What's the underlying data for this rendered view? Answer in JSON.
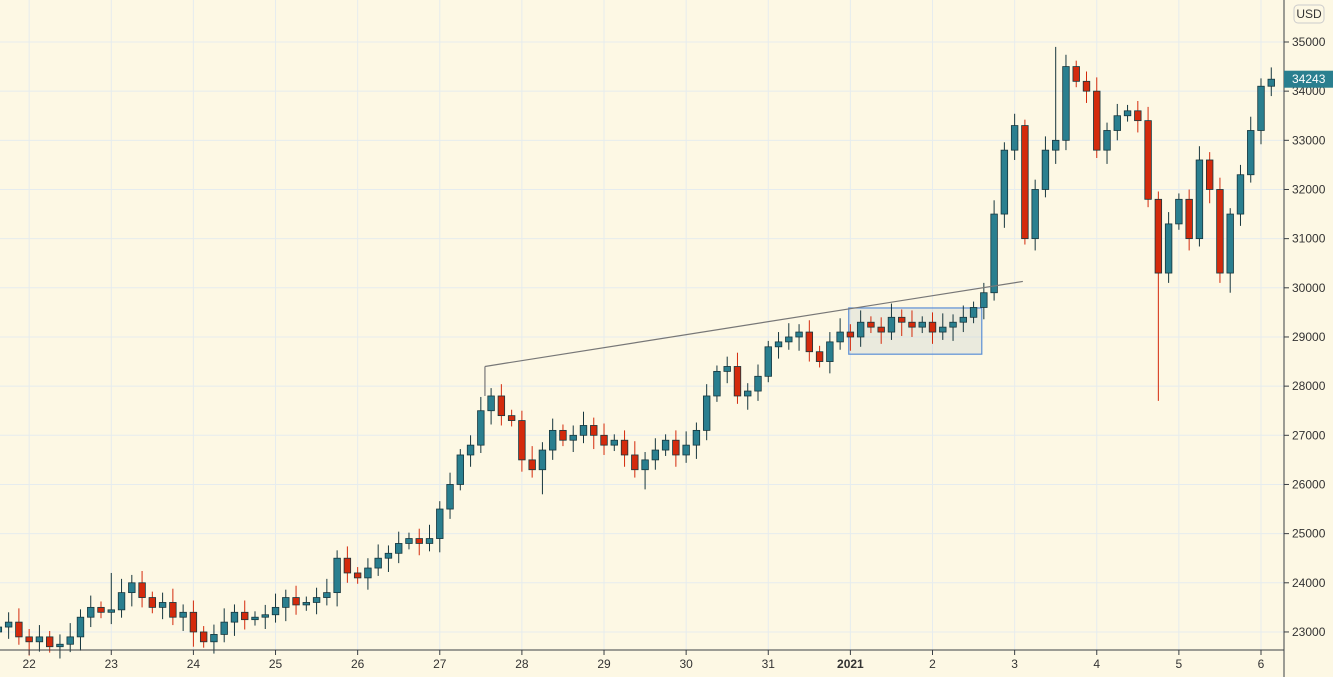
{
  "chart_data": {
    "type": "candlestick",
    "title": "",
    "currency_label": "USD",
    "last_price_label": "34243",
    "colors": {
      "up": "#2a7f8f",
      "down": "#d42a0c",
      "outline": "#16363d",
      "background": "#fdf8e4",
      "grid": "#e6ecee",
      "last_price": "#2a7f8f"
    },
    "ylim": [
      22633,
      35854
    ],
    "yticks": [
      23000,
      24000,
      25000,
      26000,
      27000,
      28000,
      29000,
      30000,
      31000,
      32000,
      33000,
      34000,
      35000
    ],
    "ytick_labels": [
      "23000",
      "24000",
      "25000",
      "26000",
      "27000",
      "28000",
      "29000",
      "30000",
      "31000",
      "32000",
      "33000",
      "34000",
      "35000"
    ],
    "x_unit": "days since Dec 22 (3h candles)",
    "xlim": [
      -0.355,
      15.28
    ],
    "xticks": [
      0,
      1,
      2,
      3,
      4,
      5,
      6,
      7,
      8,
      9,
      10,
      11,
      12,
      13,
      14,
      15
    ],
    "xtick_labels": [
      "22",
      "23",
      "24",
      "25",
      "26",
      "27",
      "28",
      "29",
      "30",
      "31",
      "2021",
      "2",
      "3",
      "4",
      "5",
      "6"
    ],
    "xtick_bold": [
      "2021"
    ],
    "candle_start": -0.375,
    "candle_step": 0.125,
    "first_open": 23000,
    "closes": [
      23100,
      23200,
      22900,
      22800,
      22900,
      22700,
      22750,
      22900,
      23300,
      23500,
      23400,
      23450,
      23800,
      24000,
      23700,
      23500,
      23600,
      23300,
      23400,
      23000,
      22800,
      22950,
      23200,
      23400,
      23250,
      23300,
      23350,
      23500,
      23700,
      23550,
      23600,
      23700,
      23800,
      24500,
      24200,
      24100,
      24300,
      24500,
      24600,
      24800,
      24900,
      24800,
      24900,
      25500,
      26000,
      26600,
      26800,
      27500,
      27800,
      27400,
      27300,
      26500,
      26300,
      26700,
      27100,
      26900,
      27000,
      27200,
      27000,
      26800,
      26900,
      26600,
      26300,
      26500,
      26700,
      26900,
      26600,
      26800,
      27100,
      27800,
      28300,
      28400,
      27800,
      27900,
      28200,
      28800,
      28900,
      29000,
      29100,
      28700,
      28500,
      28900,
      29100,
      29000,
      29300,
      29200,
      29100,
      29400,
      29300,
      29200,
      29300,
      29100,
      29200,
      29300,
      29400,
      29600,
      29900,
      31500,
      32800,
      33300,
      31000,
      32000,
      32800,
      33000,
      34500,
      34200,
      34000,
      32800,
      33200,
      33500,
      33600,
      33400,
      31800,
      30300,
      31300,
      31800,
      31000,
      32600,
      32000,
      30300,
      31500,
      32300,
      33200,
      34100,
      34243
    ],
    "wicks": [
      {
        "index": 113,
        "low": 27700
      },
      {
        "index": 120,
        "low": 29900
      },
      {
        "index": 103,
        "high": 34900
      },
      {
        "index": 11,
        "high": 24200
      },
      {
        "index": 19,
        "low": 22700
      },
      {
        "index": 63,
        "low": 25900
      },
      {
        "index": 53,
        "low": 25800
      }
    ],
    "drawings": {
      "trendline": {
        "start": [
          5.55,
          28400
        ],
        "end": [
          12.1,
          30130
        ],
        "anchor_low": 27800
      },
      "range_box": {
        "x": [
          9.98,
          11.6
        ],
        "y": [
          28650,
          29590
        ]
      }
    }
  }
}
